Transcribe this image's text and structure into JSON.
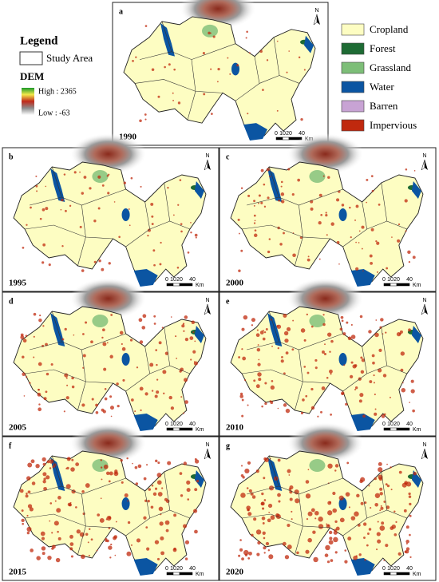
{
  "legend": {
    "title": "Legend",
    "study_area": "Study Area",
    "dem_title": "DEM",
    "dem_high": "High : 2365",
    "dem_low": "Low : -63"
  },
  "land_cover": [
    {
      "label": "Cropland",
      "color": "#fdfdc2"
    },
    {
      "label": "Forest",
      "color": "#1e6b34"
    },
    {
      "label": "Grassland",
      "color": "#7dbe78"
    },
    {
      "label": "Water",
      "color": "#0b55a2"
    },
    {
      "label": "Barren",
      "color": "#c8a3d4"
    },
    {
      "label": "Impervious",
      "color": "#c0290e"
    }
  ],
  "panels": [
    {
      "letter": "a",
      "year": "1990"
    },
    {
      "letter": "b",
      "year": "1995"
    },
    {
      "letter": "c",
      "year": "2000"
    },
    {
      "letter": "d",
      "year": "2005"
    },
    {
      "letter": "e",
      "year": "2010"
    },
    {
      "letter": "f",
      "year": "2015"
    },
    {
      "letter": "g",
      "year": "2020"
    }
  ],
  "scale_bar": {
    "ticks": [
      "0",
      "10",
      "20",
      "40"
    ],
    "unit": "Km"
  },
  "north": "N"
}
